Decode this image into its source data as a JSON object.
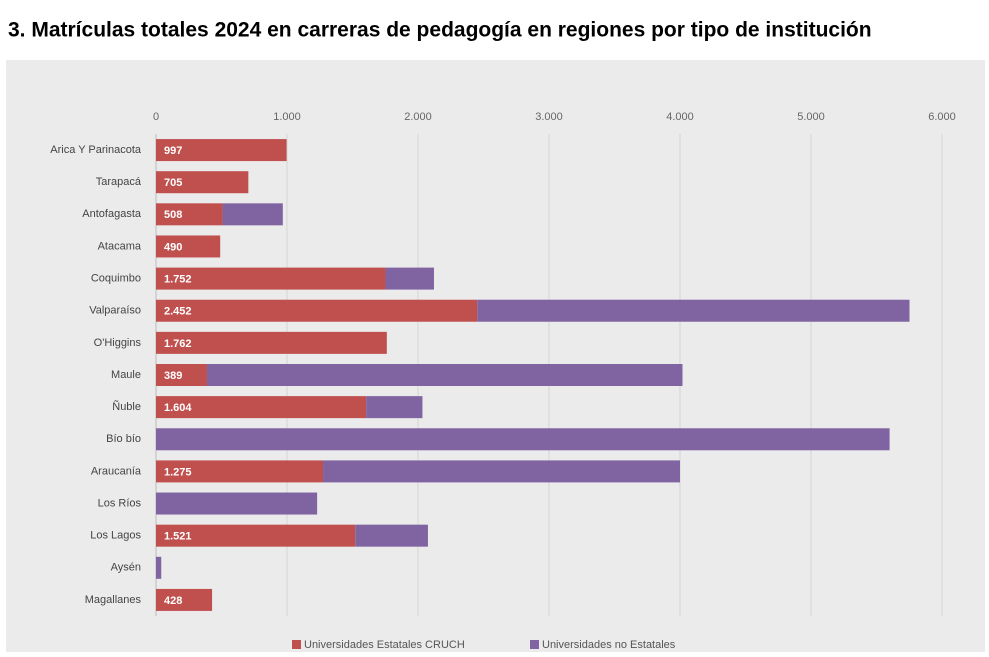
{
  "chart_data": {
    "type": "stacked_bar_horizontal",
    "title": "3. Matrículas totales 2024 en carreras de pedagogía en regiones por tipo de institución",
    "categories": [
      "Arica Y Parinacota",
      "Tarapacá",
      "Antofagasta",
      "Atacama",
      "Coquimbo",
      "Valparaíso",
      "O'Higgins",
      "Maule",
      "Ñuble",
      "Bío bío",
      "Araucanía",
      "Los Ríos",
      "Los Lagos",
      "Aysén",
      "Magallanes"
    ],
    "series": [
      {
        "name": "Universidades Estatales CRUCH",
        "color": "#c0504d",
        "values": [
          997,
          705,
          508,
          490,
          1752,
          2452,
          1762,
          389,
          1604,
          0,
          1275,
          0,
          1521,
          0,
          428
        ],
        "value_labels": [
          "997",
          "705",
          "508",
          "490",
          "1.752",
          "2.452",
          "1.762",
          "389",
          "1.604",
          null,
          "1.275",
          null,
          "1.521",
          null,
          "428"
        ]
      },
      {
        "name": "Universidades no Estatales",
        "color": "#8064a2",
        "values": [
          0,
          0,
          460,
          0,
          370,
          3300,
          0,
          3630,
          430,
          5600,
          2725,
          1230,
          555,
          40,
          0
        ]
      }
    ],
    "xlim": [
      0,
      6000
    ],
    "xticks": [
      0,
      {
        "value": 1000,
        "label": "1.000"
      },
      {
        "value": 2000,
        "label": "2.000"
      },
      {
        "value": 3000,
        "label": "3.000"
      },
      {
        "value": 4000,
        "label": "4.000"
      },
      {
        "value": 5000,
        "label": "5.000"
      },
      {
        "value": 6000,
        "label": "6.000"
      }
    ],
    "grid": true,
    "legend": "bottom"
  }
}
